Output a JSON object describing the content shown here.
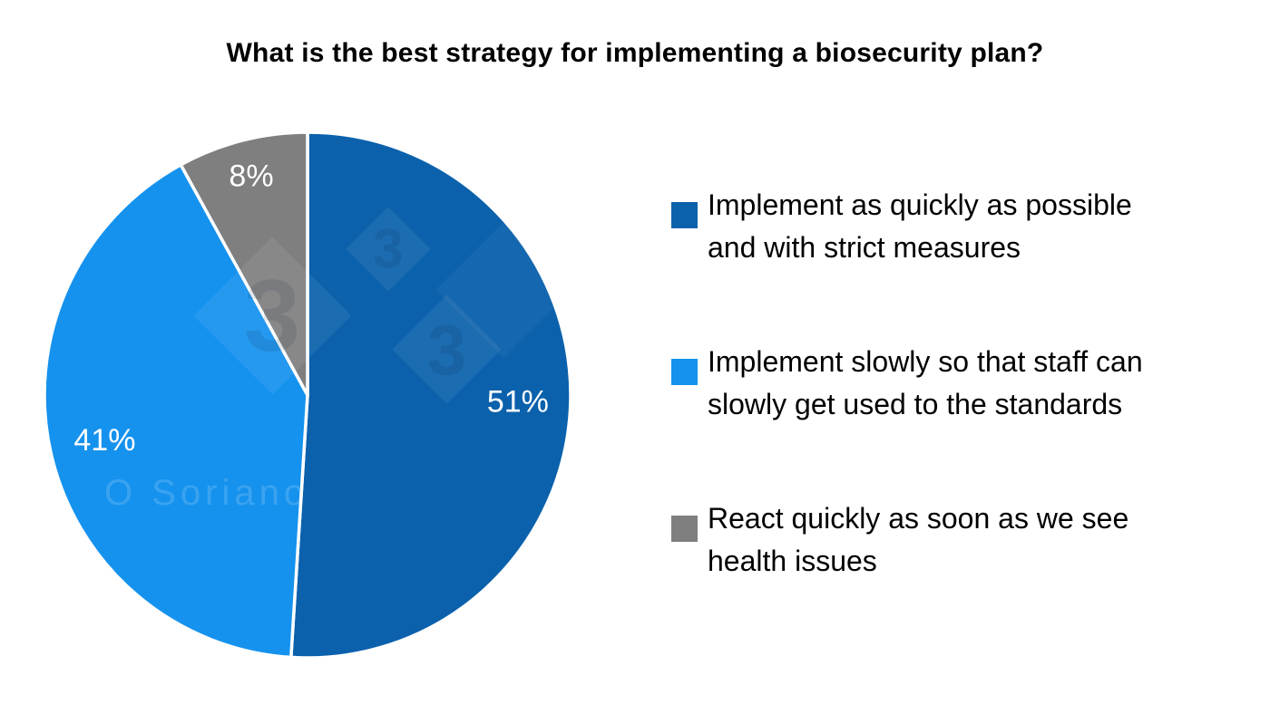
{
  "title": "What is the best strategy for implementing a biosecurity plan?",
  "chart_data": {
    "type": "pie",
    "title": "What is the best strategy for implementing a biosecurity plan?",
    "categories": [
      "Implement as quickly as possible and with strict measures",
      "Implement slowly so that staff can slowly get used to the standards",
      "React quickly as soon as we see health issues"
    ],
    "values": [
      51,
      41,
      8
    ],
    "unit": "%",
    "colors": [
      "#0b61ac",
      "#1592ee",
      "#7f7f7f"
    ],
    "slice_label_color": "#ffffff",
    "slice_label_radius": [
      0.8,
      0.79,
      0.86
    ],
    "slice_border_color": "#ffffff",
    "start_angle_deg": 0,
    "direction": "clockwise",
    "legend_position": "right",
    "grid": false
  },
  "legend": {
    "items": [
      {
        "color": "#0b61ac",
        "lines": [
          "Implement as quickly as possible",
          "and with strict measures"
        ]
      },
      {
        "color": "#1592ee",
        "lines": [
          "Implement slowly so that staff can",
          "slowly get used to the standards"
        ]
      },
      {
        "color": "#7f7f7f",
        "lines": [
          "React quickly as soon as we see",
          "health issues"
        ]
      }
    ]
  },
  "watermark": {
    "name_text": "O Soriano",
    "diamond_glyph": "3"
  }
}
